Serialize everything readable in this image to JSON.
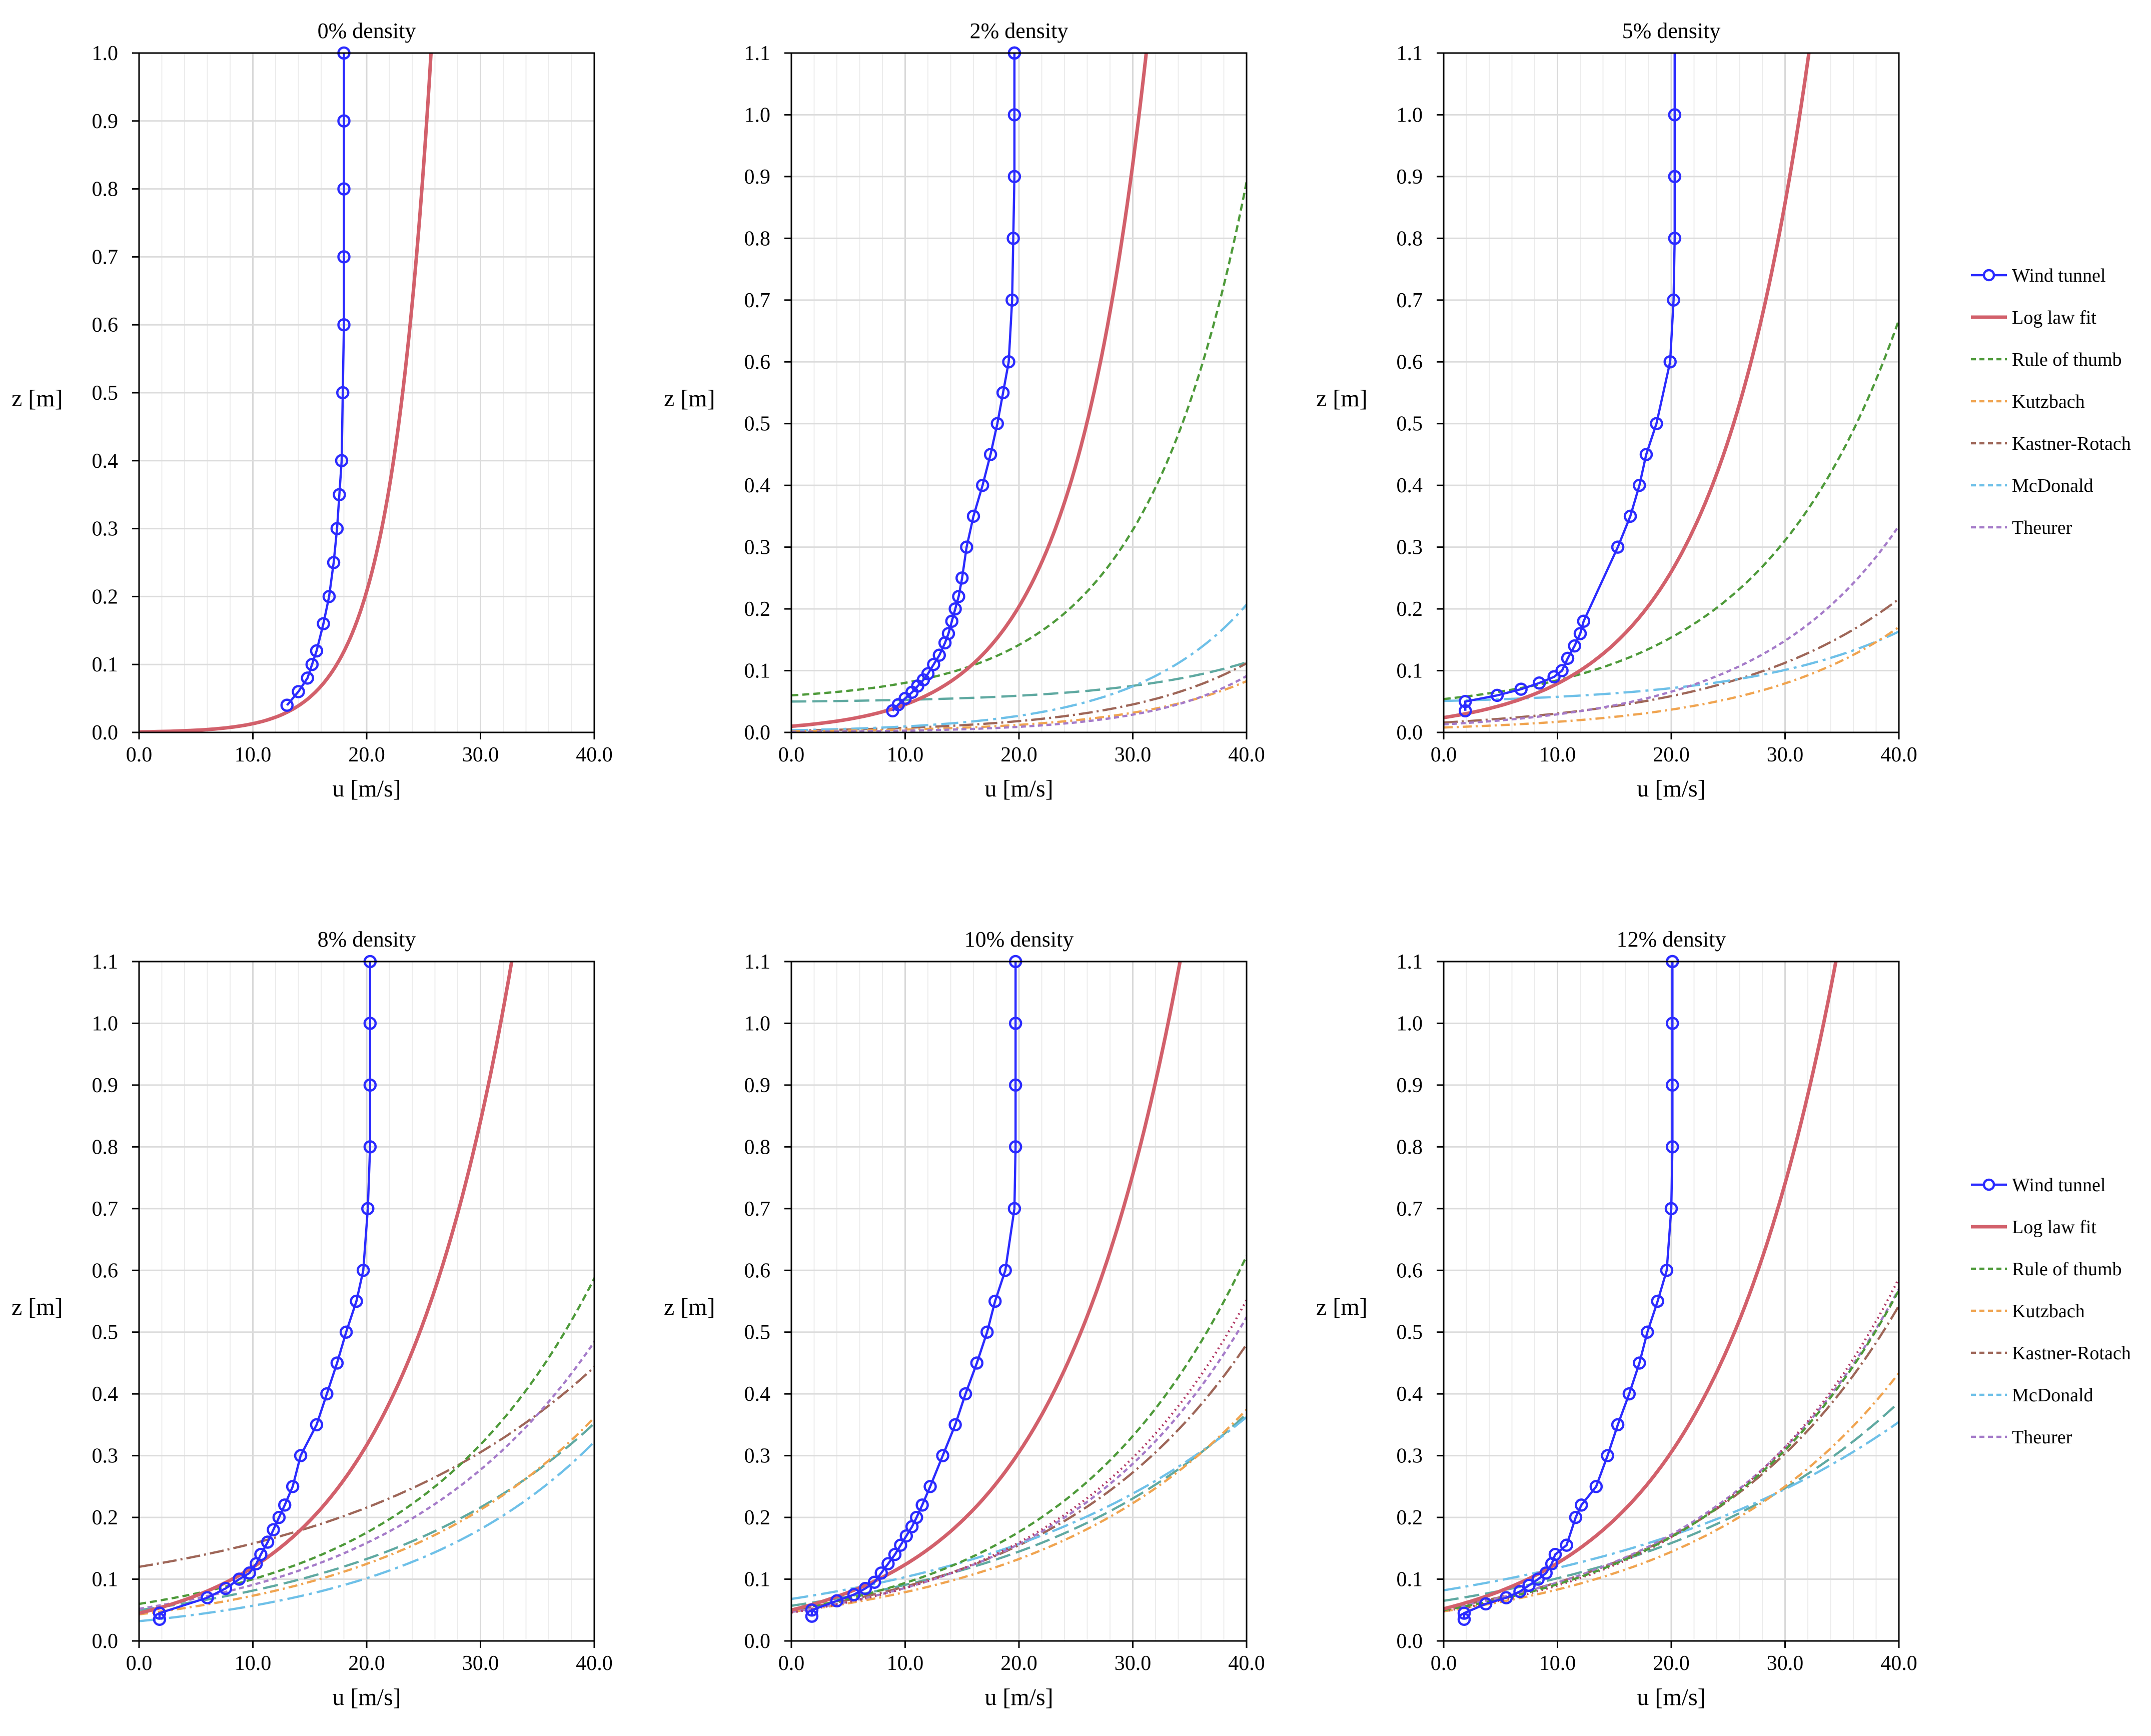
{
  "figure": {
    "x_label": "u [m/s]",
    "y_label": "z [m]"
  },
  "legend": {
    "placement": "right",
    "entries": [
      {
        "key": "wind",
        "label": "Wind tunnel"
      },
      {
        "key": "log",
        "label": "Log law fit"
      },
      {
        "key": "rot",
        "label": "Rule of thumb"
      },
      {
        "key": "kutz",
        "label": "Kutzbach"
      },
      {
        "key": "kr",
        "label": "Kastner-Rotach"
      },
      {
        "key": "mcd",
        "label": "McDonald"
      },
      {
        "key": "theu",
        "label": "Theurer"
      }
    ]
  },
  "series_styles": {
    "wind": {
      "color": "#2b2bff",
      "dash": "",
      "marker": "circle"
    },
    "log": {
      "color": "#d2606b",
      "dash": ""
    },
    "rot": {
      "color": "#4e9a3a",
      "dash": "14 8"
    },
    "kutz": {
      "color": "#f0a450",
      "dash": "18 8 4 8"
    },
    "kr": {
      "color": "#9e6658",
      "dash": "28 8 4 8"
    },
    "mcd": {
      "color": "#6ec0e8",
      "dash": "34 10 6 10"
    },
    "theu": {
      "color": "#a57bc9",
      "dash": "10 7"
    },
    "extra": {
      "color": "#b23a66",
      "dash": "3 7"
    },
    "extra2": {
      "color": "#5fa9a1",
      "dash": "30 12"
    }
  },
  "chart_data": [
    {
      "type": "line",
      "title": "0% density",
      "xlabel": "u [m/s]",
      "ylabel": "z [m]",
      "xlim": [
        0,
        40
      ],
      "ylim": [
        0,
        1.0
      ],
      "xticks": [
        "0.0",
        "10.0",
        "20.0",
        "30.0",
        "40.0"
      ],
      "yticks": [
        "0.0",
        "0.1",
        "0.2",
        "0.3",
        "0.4",
        "0.5",
        "0.6",
        "0.7",
        "0.8",
        "0.9",
        "1.0"
      ],
      "wind_tunnel": {
        "u": [
          13.0,
          14.0,
          14.8,
          15.2,
          15.6,
          16.2,
          16.7,
          17.1,
          17.4,
          17.6,
          17.8,
          17.9,
          18.0,
          18.0,
          18.0,
          18.0,
          18.0
        ],
        "z": [
          0.04,
          0.06,
          0.08,
          0.1,
          0.12,
          0.16,
          0.2,
          0.25,
          0.3,
          0.35,
          0.4,
          0.5,
          0.6,
          0.7,
          0.8,
          0.9,
          1.0
        ]
      },
      "series": [
        {
          "name": "Log law fit",
          "key": "log",
          "ustar": 1.475,
          "z0": 0.0008,
          "d": 0.0
        }
      ]
    },
    {
      "type": "line",
      "title": "2% density",
      "xlabel": "u [m/s]",
      "ylabel": "z [m]",
      "xlim": [
        0,
        40
      ],
      "ylim": [
        0,
        1.1
      ],
      "xticks": [
        "0.0",
        "10.0",
        "20.0",
        "30.0",
        "40.0"
      ],
      "yticks": [
        "0.0",
        "0.1",
        "0.2",
        "0.3",
        "0.4",
        "0.5",
        "0.6",
        "0.7",
        "0.8",
        "0.9",
        "1.0",
        "1.1"
      ],
      "wind_tunnel": {
        "u": [
          8.9,
          9.4,
          10.0,
          10.6,
          11.1,
          11.6,
          12.0,
          12.5,
          13.0,
          13.5,
          13.8,
          14.1,
          14.4,
          14.7,
          15.0,
          15.4,
          16.0,
          16.8,
          17.5,
          18.1,
          18.6,
          19.1,
          19.4,
          19.5,
          19.6,
          19.6,
          19.6,
          19.6,
          19.6
        ],
        "z": [
          0.035,
          0.045,
          0.055,
          0.065,
          0.075,
          0.085,
          0.095,
          0.11,
          0.125,
          0.145,
          0.16,
          0.18,
          0.2,
          0.22,
          0.25,
          0.3,
          0.35,
          0.4,
          0.45,
          0.5,
          0.55,
          0.6,
          0.7,
          0.8,
          0.9,
          1.0,
          1.1,
          1.1,
          1.1
        ]
      },
      "series": [
        {
          "name": "Log law fit",
          "key": "log",
          "ustar": 2.72,
          "z0": 0.01,
          "d": 0.0
        },
        {
          "name": "Rule of thumb",
          "key": "rot",
          "ustar": 3.7,
          "z0": 0.01,
          "d": 0.05
        },
        {
          "name": "Kutzbach",
          "key": "kutz",
          "ustar": 4.28,
          "z0": 0.0018,
          "d": 0.0
        },
        {
          "name": "Kastner-Rotach",
          "key": "kr",
          "ustar": 4.53,
          "z0": 0.003,
          "d": 0.0
        },
        {
          "name": "McDonald",
          "key": "mcd",
          "ustar": 4.02,
          "z0": 0.0035,
          "d": 0.0
        },
        {
          "name": "Theurer",
          "key": "theu",
          "ustar": 3.55,
          "z0": 0.0009,
          "d": 0.0
        },
        {
          "name": "",
          "key": "extra2",
          "ustar": 4.7,
          "z0": 0.002,
          "d": 0.048
        }
      ]
    },
    {
      "type": "line",
      "title": "5% density",
      "xlabel": "u [m/s]",
      "ylabel": "z [m]",
      "xlim": [
        0,
        40
      ],
      "ylim": [
        0,
        1.1
      ],
      "xticks": [
        "0.0",
        "10.0",
        "20.0",
        "30.0",
        "40.0"
      ],
      "yticks": [
        "0.0",
        "0.1",
        "0.2",
        "0.3",
        "0.4",
        "0.5",
        "0.6",
        "0.7",
        "0.8",
        "0.9",
        "1.0",
        "1.1"
      ],
      "wind_tunnel": {
        "u": [
          1.9,
          1.9,
          4.7,
          6.8,
          8.4,
          9.7,
          10.4,
          10.9,
          11.5,
          12.0,
          12.3,
          15.3,
          16.4,
          17.2,
          17.8,
          18.7,
          19.9,
          20.2,
          20.3,
          20.3,
          20.3
        ],
        "z": [
          0.035,
          0.05,
          0.06,
          0.07,
          0.08,
          0.09,
          0.1,
          0.12,
          0.14,
          0.16,
          0.18,
          0.3,
          0.35,
          0.4,
          0.45,
          0.5,
          0.6,
          0.7,
          0.8,
          0.9,
          1.0
        ]
      },
      "series": [
        {
          "name": "Log law fit",
          "key": "log",
          "ustar": 3.44,
          "z0": 0.024,
          "d": 0.0
        },
        {
          "name": "Rule of thumb",
          "key": "rot",
          "ustar": 5.0,
          "z0": 0.024,
          "d": 0.03
        },
        {
          "name": "Kutzbach",
          "key": "kutz",
          "ustar": 5.36,
          "z0": 0.008,
          "d": 0.0
        },
        {
          "name": "Kastner-Rotach",
          "key": "kr",
          "ustar": 6.3,
          "z0": 0.016,
          "d": 0.0
        },
        {
          "name": "McDonald",
          "key": "mcd",
          "ustar": 5.5,
          "z0": 0.006,
          "d": 0.045
        },
        {
          "name": "Theurer",
          "key": "theu",
          "ustar": 5.05,
          "z0": 0.013,
          "d": 0.0
        }
      ]
    },
    {
      "type": "line",
      "title": "8% density",
      "xlabel": "u [m/s]",
      "ylabel": "z [m]",
      "xlim": [
        0,
        40
      ],
      "ylim": [
        0,
        1.1
      ],
      "xticks": [
        "0.0",
        "10.0",
        "20.0",
        "30.0",
        "40.0"
      ],
      "yticks": [
        "0.0",
        "0.1",
        "0.2",
        "0.3",
        "0.4",
        "0.5",
        "0.6",
        "0.7",
        "0.8",
        "0.9",
        "1.0",
        "1.1"
      ],
      "wind_tunnel": {
        "u": [
          1.8,
          1.8,
          6.0,
          7.6,
          8.8,
          9.7,
          10.3,
          10.7,
          11.3,
          11.8,
          12.3,
          12.8,
          13.5,
          14.2,
          15.6,
          16.5,
          17.4,
          18.2,
          19.1,
          19.7,
          20.1,
          20.3,
          20.3,
          20.3,
          20.3
        ],
        "z": [
          0.035,
          0.045,
          0.07,
          0.085,
          0.1,
          0.11,
          0.125,
          0.14,
          0.16,
          0.18,
          0.2,
          0.22,
          0.25,
          0.3,
          0.35,
          0.4,
          0.45,
          0.5,
          0.55,
          0.6,
          0.7,
          0.8,
          0.9,
          1.0,
          1.1
        ]
      },
      "series": [
        {
          "name": "Log law fit",
          "key": "log",
          "ustar": 4.2,
          "z0": 0.045,
          "d": 0.0
        },
        {
          "name": "Rule of thumb",
          "key": "rot",
          "ustar": 6.45,
          "z0": 0.045,
          "d": 0.015
        },
        {
          "name": "Kutzbach",
          "key": "kutz",
          "ustar": 7.7,
          "z0": 0.043,
          "d": 0.0
        },
        {
          "name": "Kastner-Rotach",
          "key": "kr",
          "ustar": 9.5,
          "z0": 0.07,
          "d": 0.05
        },
        {
          "name": "McDonald",
          "key": "mcd",
          "ustar": 7.1,
          "z0": 0.032,
          "d": 0.0
        },
        {
          "name": "Theurer",
          "key": "theu",
          "ustar": 7.35,
          "z0": 0.052,
          "d": 0.0
        },
        {
          "name": "",
          "key": "extra2",
          "ustar": 8.4,
          "z0": 0.05,
          "d": 0.0
        }
      ]
    },
    {
      "type": "line",
      "title": "10% density",
      "xlabel": "u [m/s]",
      "ylabel": "z [m]",
      "xlim": [
        0,
        40
      ],
      "ylim": [
        0,
        1.1
      ],
      "xticks": [
        "0.0",
        "10.0",
        "20.0",
        "30.0",
        "40.0"
      ],
      "yticks": [
        "0.0",
        "0.1",
        "0.2",
        "0.3",
        "0.4",
        "0.5",
        "0.6",
        "0.7",
        "0.8",
        "0.9",
        "1.0",
        "1.1"
      ],
      "wind_tunnel": {
        "u": [
          1.8,
          1.8,
          4.0,
          5.5,
          6.5,
          7.3,
          7.9,
          8.5,
          9.1,
          9.6,
          10.1,
          10.6,
          11.0,
          11.5,
          12.2,
          13.3,
          14.4,
          15.3,
          16.3,
          17.2,
          17.9,
          18.8,
          19.6,
          19.7,
          19.7,
          19.7,
          19.7
        ],
        "z": [
          0.04,
          0.05,
          0.065,
          0.075,
          0.085,
          0.095,
          0.11,
          0.125,
          0.14,
          0.155,
          0.17,
          0.185,
          0.2,
          0.22,
          0.25,
          0.3,
          0.35,
          0.4,
          0.45,
          0.5,
          0.55,
          0.6,
          0.7,
          0.8,
          0.9,
          1.0,
          1.1
        ]
      },
      "series": [
        {
          "name": "Log law fit",
          "key": "log",
          "ustar": 4.53,
          "z0": 0.05,
          "d": 0.0
        },
        {
          "name": "Rule of thumb",
          "key": "rot",
          "ustar": 6.5,
          "z0": 0.05,
          "d": 0.0
        },
        {
          "name": "Kutzbach",
          "key": "kutz",
          "ustar": 7.9,
          "z0": 0.047,
          "d": 0.0
        },
        {
          "name": "Kastner-Rotach",
          "key": "kr",
          "ustar": 7.25,
          "z0": 0.05,
          "d": 0.0
        },
        {
          "name": "McDonald",
          "key": "mcd",
          "ustar": 9.8,
          "z0": 0.068,
          "d": 0.0
        },
        {
          "name": "Theurer",
          "key": "theu",
          "ustar": 6.8,
          "z0": 0.047,
          "d": 0.0
        },
        {
          "name": "",
          "key": "extra",
          "ustar": 6.6,
          "z0": 0.046,
          "d": 0.0
        },
        {
          "name": "",
          "key": "extra2",
          "ustar": 8.8,
          "z0": 0.057,
          "d": 0.0
        }
      ]
    },
    {
      "type": "line",
      "title": "12% density",
      "xlabel": "u [m/s]",
      "ylabel": "z [m]",
      "xlim": [
        0,
        40
      ],
      "ylim": [
        0,
        1.1
      ],
      "xticks": [
        "0.0",
        "10.0",
        "20.0",
        "30.0",
        "40.0"
      ],
      "yticks": [
        "0.0",
        "0.1",
        "0.2",
        "0.3",
        "0.4",
        "0.5",
        "0.6",
        "0.7",
        "0.8",
        "0.9",
        "1.0",
        "1.1"
      ],
      "wind_tunnel": {
        "u": [
          1.8,
          1.8,
          3.7,
          5.5,
          6.7,
          7.5,
          8.3,
          9.0,
          9.5,
          9.8,
          10.8,
          11.6,
          12.1,
          13.4,
          14.4,
          15.3,
          16.3,
          17.2,
          17.9,
          18.8,
          19.6,
          20.0,
          20.1,
          20.1,
          20.1,
          20.1,
          20.1
        ],
        "z": [
          0.035,
          0.045,
          0.06,
          0.07,
          0.08,
          0.09,
          0.1,
          0.11,
          0.125,
          0.14,
          0.155,
          0.2,
          0.22,
          0.25,
          0.3,
          0.35,
          0.4,
          0.45,
          0.5,
          0.55,
          0.6,
          0.7,
          0.8,
          0.9,
          1.0,
          1.1,
          1.1
        ]
      },
      "series": [
        {
          "name": "Log law fit",
          "key": "log",
          "ustar": 4.63,
          "z0": 0.052,
          "d": 0.0
        },
        {
          "name": "Rule of thumb",
          "key": "rot",
          "ustar": 6.75,
          "z0": 0.05,
          "d": 0.0
        },
        {
          "name": "Kutzbach",
          "key": "kutz",
          "ustar": 7.45,
          "z0": 0.048,
          "d": 0.0
        },
        {
          "name": "Kastner-Rotach",
          "key": "kr",
          "ustar": 7.05,
          "z0": 0.053,
          "d": 0.0
        },
        {
          "name": "McDonald",
          "key": "mcd",
          "ustar": 11.2,
          "z0": 0.082,
          "d": 0.0
        },
        {
          "name": "Theurer",
          "key": "theu",
          "ustar": 6.85,
          "z0": 0.052,
          "d": 0.0
        },
        {
          "name": "",
          "key": "extra",
          "ustar": 6.55,
          "z0": 0.048,
          "d": 0.0
        },
        {
          "name": "",
          "key": "extra2",
          "ustar": 9.2,
          "z0": 0.065,
          "d": 0.0
        }
      ]
    }
  ]
}
